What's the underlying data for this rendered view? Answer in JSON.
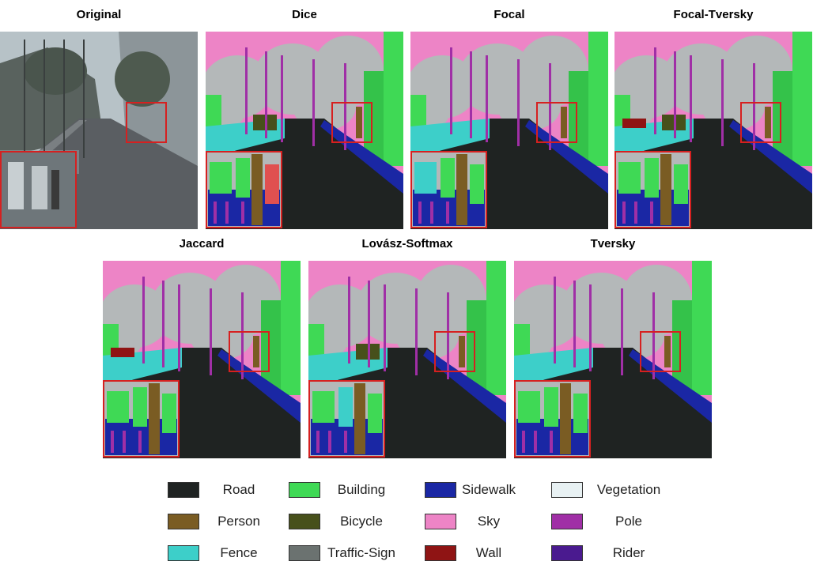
{
  "panels": [
    {
      "title": "Original",
      "kind": "photo"
    },
    {
      "title": "Dice",
      "kind": "seg",
      "variant": 0
    },
    {
      "title": "Focal",
      "kind": "seg",
      "variant": 1
    },
    {
      "title": "Focal-Tversky",
      "kind": "seg",
      "variant": 2
    },
    {
      "title": "Jaccard",
      "kind": "seg",
      "variant": 3
    },
    {
      "title": "Lovász-Softmax",
      "kind": "seg",
      "variant": 4
    },
    {
      "title": "Tversky",
      "kind": "seg",
      "variant": 5
    }
  ],
  "legend": [
    {
      "label": "Road",
      "color": "#1f2322"
    },
    {
      "label": "Building",
      "color": "#3fd955"
    },
    {
      "label": "Sidewalk",
      "color": "#1a27a4"
    },
    {
      "label": "Vegetation",
      "color": "#e8f1f3"
    },
    {
      "label": "Person",
      "color": "#7a5c23"
    },
    {
      "label": "Bicycle",
      "color": "#47501b"
    },
    {
      "label": "Sky",
      "color": "#ed84c6"
    },
    {
      "label": "Pole",
      "color": "#a02fa6"
    },
    {
      "label": "Fence",
      "color": "#3dcfc9"
    },
    {
      "label": "Traffic-Sign",
      "color": "#6b7270"
    },
    {
      "label": "Wall",
      "color": "#8f1414"
    },
    {
      "label": "Rider",
      "color": "#4a1a8f"
    }
  ]
}
